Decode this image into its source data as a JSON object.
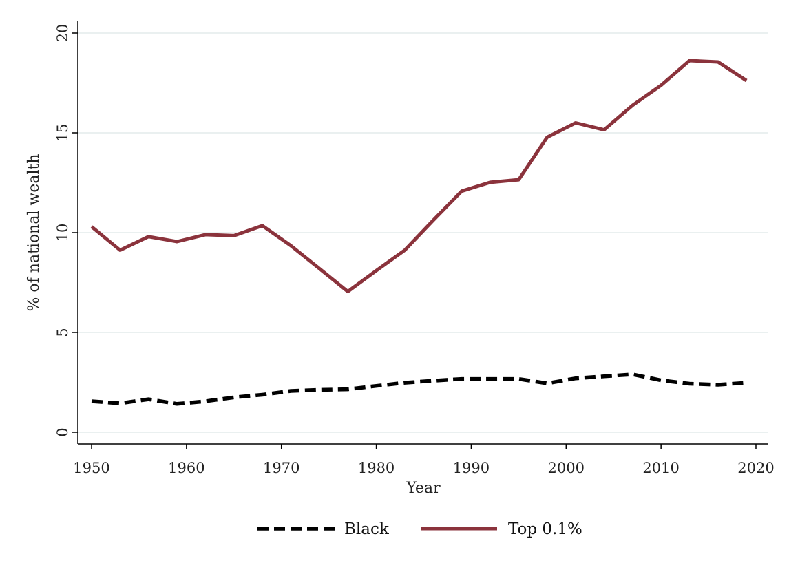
{
  "chart_data": {
    "type": "line",
    "title": "",
    "xlabel": "Year",
    "ylabel": "% of national wealth",
    "xlim": [
      1950,
      2020
    ],
    "ylim": [
      0,
      20
    ],
    "xticks": [
      1950,
      1960,
      1970,
      1980,
      1990,
      2000,
      2010,
      2020
    ],
    "yticks": [
      0,
      5,
      10,
      15,
      20
    ],
    "grid": "horizontal",
    "legend_position": "bottom",
    "series": [
      {
        "name": "Black",
        "style": "dashed",
        "color": "#000000",
        "x": [
          1950,
          1953,
          1956,
          1959,
          1962,
          1965,
          1968,
          1971,
          1974,
          1977,
          1980,
          1983,
          1986,
          1989,
          1992,
          1995,
          1998,
          2001,
          2004,
          2007,
          2010,
          2013,
          2016,
          2019
        ],
        "y": [
          1.55,
          1.45,
          1.65,
          1.42,
          1.55,
          1.75,
          1.88,
          2.07,
          2.12,
          2.15,
          2.32,
          2.48,
          2.58,
          2.67,
          2.67,
          2.67,
          2.45,
          2.7,
          2.8,
          2.9,
          2.6,
          2.43,
          2.38,
          2.48
        ]
      },
      {
        "name": "Top 0.1%",
        "style": "solid",
        "color": "#8b333c",
        "x": [
          1950,
          1953,
          1956,
          1959,
          1962,
          1965,
          1968,
          1971,
          1974,
          1977,
          1980,
          1983,
          1986,
          1989,
          1992,
          1995,
          1998,
          2001,
          2004,
          2007,
          2010,
          2013,
          2016,
          2019
        ],
        "y": [
          10.3,
          9.12,
          9.8,
          9.55,
          9.9,
          9.85,
          10.35,
          9.35,
          8.2,
          7.05,
          8.1,
          9.12,
          10.62,
          12.08,
          12.52,
          12.65,
          14.78,
          15.5,
          15.15,
          16.38,
          17.38,
          18.62,
          18.55,
          17.62
        ]
      }
    ]
  }
}
